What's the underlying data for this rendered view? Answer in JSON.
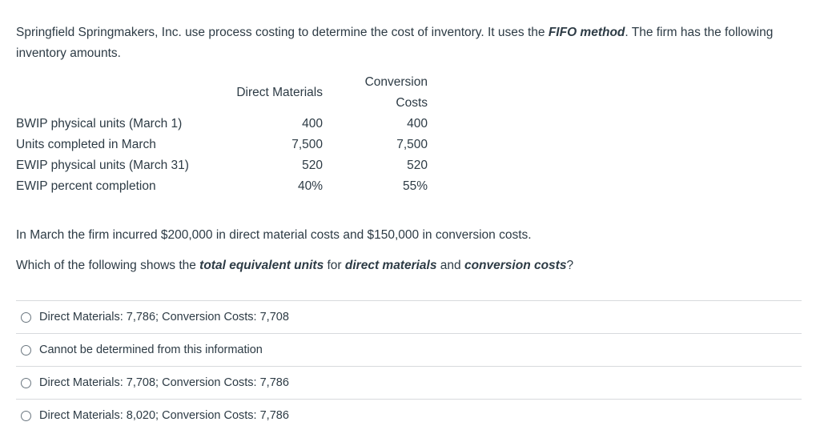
{
  "intro": {
    "parts": [
      "Springfield Springmakers, Inc. use process costing to determine the cost of inventory. It uses the ",
      "FIFO method",
      ". The firm has the following inventory amounts."
    ]
  },
  "table": {
    "headers": [
      "Direct Materials",
      "Conversion Costs"
    ],
    "rows": [
      [
        "BWIP physical units (March 1)",
        "400",
        "400"
      ],
      [
        "Units completed in March",
        "7,500",
        "7,500"
      ],
      [
        "EWIP physical units (March 31)",
        "520",
        "520"
      ],
      [
        "EWIP percent completion",
        "40%",
        "55%"
      ]
    ]
  },
  "costs_text": "In March the firm incurred $200,000 in direct material costs and $150,000 in conversion costs.",
  "question": {
    "parts": [
      "Which of the following shows the ",
      "total equivalent units",
      " for ",
      "direct materials",
      " and ",
      "conversion costs",
      "?"
    ]
  },
  "options": [
    "Direct Materials: 7,786; Conversion Costs: 7,708",
    "Cannot be determined from this information",
    "Direct Materials: 7,708; Conversion Costs: 7,786",
    "Direct Materials: 8,020; Conversion Costs: 7,786"
  ]
}
